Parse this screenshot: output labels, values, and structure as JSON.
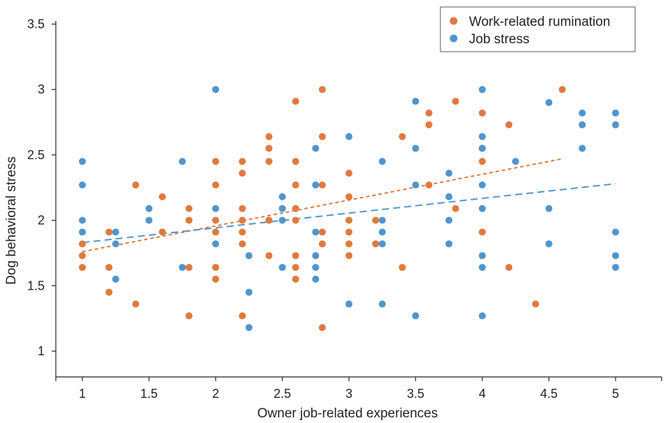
{
  "chart_data": {
    "type": "scatter",
    "title": "",
    "xlabel": "Owner job-related experiences",
    "ylabel": "Dog behavioral stress",
    "xlim": [
      0.8,
      5.35
    ],
    "ylim": [
      0.8,
      3.5
    ],
    "x_ticks": [
      1,
      1.5,
      2,
      2.5,
      3,
      3.5,
      4,
      4.5,
      5
    ],
    "x_tick_labels": [
      "1",
      "1.5",
      "2",
      "2.5",
      "3",
      "3.5",
      "4",
      "4.5",
      "5"
    ],
    "y_ticks": [
      1,
      1.5,
      2,
      2.5,
      3,
      3.5
    ],
    "y_tick_labels": [
      "1",
      "1.5",
      "2",
      "2.5",
      "3",
      "3.5"
    ],
    "grid": false,
    "legend_position": "top-right",
    "series": [
      {
        "name": "Work-related rumination",
        "color": "#e07a3e",
        "points": [
          [
            1,
            1.82
          ],
          [
            1,
            1.73
          ],
          [
            1,
            1.64
          ],
          [
            1.2,
            1.91
          ],
          [
            1.2,
            1.64
          ],
          [
            1.2,
            1.45
          ],
          [
            1.4,
            2.27
          ],
          [
            1.4,
            1.36
          ],
          [
            1.6,
            2.18
          ],
          [
            1.6,
            1.91
          ],
          [
            1.8,
            2.09
          ],
          [
            1.8,
            2.0
          ],
          [
            1.8,
            1.64
          ],
          [
            1.8,
            1.27
          ],
          [
            2,
            2.45
          ],
          [
            2,
            2.27
          ],
          [
            2,
            2.0
          ],
          [
            2,
            1.91
          ],
          [
            2,
            1.64
          ],
          [
            2,
            1.55
          ],
          [
            2.2,
            2.45
          ],
          [
            2.2,
            2.36
          ],
          [
            2.2,
            2.09
          ],
          [
            2.2,
            2.0
          ],
          [
            2.2,
            1.91
          ],
          [
            2.2,
            1.82
          ],
          [
            2.2,
            1.27
          ],
          [
            2.4,
            2.64
          ],
          [
            2.4,
            2.55
          ],
          [
            2.4,
            2.45
          ],
          [
            2.4,
            2.0
          ],
          [
            2.4,
            1.73
          ],
          [
            2.6,
            2.91
          ],
          [
            2.6,
            2.45
          ],
          [
            2.6,
            2.27
          ],
          [
            2.6,
            2.09
          ],
          [
            2.6,
            2.0
          ],
          [
            2.6,
            1.73
          ],
          [
            2.6,
            1.64
          ],
          [
            2.6,
            1.55
          ],
          [
            2.8,
            3.0
          ],
          [
            2.8,
            2.64
          ],
          [
            2.8,
            2.27
          ],
          [
            2.8,
            1.91
          ],
          [
            2.8,
            1.82
          ],
          [
            2.8,
            1.18
          ],
          [
            3,
            2.36
          ],
          [
            3,
            2.18
          ],
          [
            3,
            2.0
          ],
          [
            3,
            1.91
          ],
          [
            3,
            1.82
          ],
          [
            3,
            1.73
          ],
          [
            3.2,
            2.0
          ],
          [
            3.2,
            1.82
          ],
          [
            3.4,
            2.64
          ],
          [
            3.4,
            1.64
          ],
          [
            3.6,
            2.82
          ],
          [
            3.6,
            2.73
          ],
          [
            3.6,
            2.27
          ],
          [
            3.8,
            2.91
          ],
          [
            3.8,
            2.09
          ],
          [
            4,
            2.82
          ],
          [
            4,
            2.55
          ],
          [
            4,
            2.45
          ],
          [
            4,
            1.91
          ],
          [
            4.2,
            2.73
          ],
          [
            4.2,
            1.64
          ],
          [
            4.4,
            1.36
          ],
          [
            4.6,
            3.0
          ]
        ],
        "trendline": [
          [
            1,
            1.76
          ],
          [
            4.6,
            2.47
          ]
        ]
      },
      {
        "name": "Job stress",
        "color": "#4f95cf",
        "points": [
          [
            1,
            2.45
          ],
          [
            1,
            2.27
          ],
          [
            1,
            2.0
          ],
          [
            1,
            1.91
          ],
          [
            1.25,
            1.91
          ],
          [
            1.25,
            1.82
          ],
          [
            1.25,
            1.55
          ],
          [
            1.5,
            2.09
          ],
          [
            1.5,
            2.0
          ],
          [
            1.75,
            2.45
          ],
          [
            1.75,
            1.64
          ],
          [
            2,
            3.0
          ],
          [
            2,
            2.09
          ],
          [
            2,
            1.82
          ],
          [
            2.25,
            1.73
          ],
          [
            2.25,
            1.45
          ],
          [
            2.25,
            1.18
          ],
          [
            2.5,
            2.18
          ],
          [
            2.5,
            2.09
          ],
          [
            2.5,
            2.0
          ],
          [
            2.5,
            1.64
          ],
          [
            2.75,
            2.55
          ],
          [
            2.75,
            2.27
          ],
          [
            2.75,
            1.91
          ],
          [
            2.75,
            1.73
          ],
          [
            2.75,
            1.64
          ],
          [
            2.75,
            1.55
          ],
          [
            3,
            2.64
          ],
          [
            3,
            1.36
          ],
          [
            3.25,
            2.45
          ],
          [
            3.25,
            2.0
          ],
          [
            3.25,
            1.91
          ],
          [
            3.25,
            1.82
          ],
          [
            3.25,
            1.36
          ],
          [
            3.5,
            2.91
          ],
          [
            3.5,
            2.55
          ],
          [
            3.5,
            2.27
          ],
          [
            3.5,
            1.27
          ],
          [
            3.75,
            2.36
          ],
          [
            3.75,
            2.18
          ],
          [
            3.75,
            2.0
          ],
          [
            3.75,
            1.82
          ],
          [
            4,
            3.0
          ],
          [
            4,
            2.64
          ],
          [
            4,
            2.55
          ],
          [
            4,
            2.27
          ],
          [
            4,
            2.09
          ],
          [
            4,
            1.73
          ],
          [
            4,
            1.64
          ],
          [
            4,
            1.27
          ],
          [
            4.25,
            2.45
          ],
          [
            4.5,
            2.9
          ],
          [
            4.5,
            2.09
          ],
          [
            4.5,
            1.82
          ],
          [
            4.75,
            2.82
          ],
          [
            4.75,
            2.73
          ],
          [
            4.75,
            2.55
          ],
          [
            5,
            2.82
          ],
          [
            5,
            2.73
          ],
          [
            5,
            1.91
          ],
          [
            5,
            1.73
          ],
          [
            5,
            1.64
          ]
        ],
        "trendline": [
          [
            1,
            1.83
          ],
          [
            5,
            2.28
          ]
        ]
      }
    ]
  }
}
